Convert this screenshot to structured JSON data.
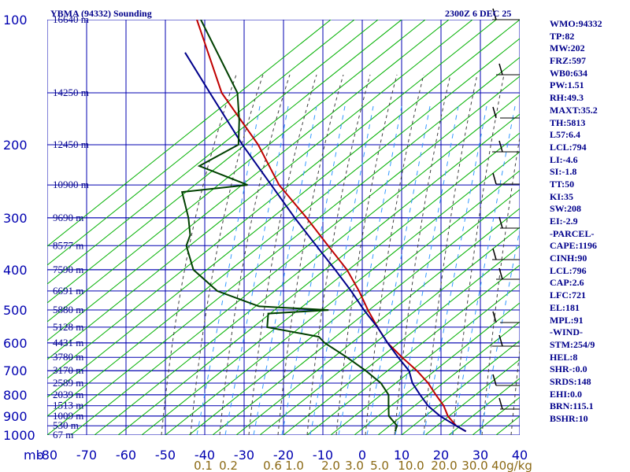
{
  "chart_data": {
    "type": "line",
    "title": "YBMA (94332) Sounding",
    "time": "2300Z  6 DEC 25",
    "pressure_axis": {
      "unit": "mb",
      "ticks": [
        100,
        200,
        300,
        400,
        500,
        600,
        700,
        800,
        900,
        1000
      ],
      "range": [
        100,
        1000
      ],
      "scale": "log"
    },
    "temperature_axis": {
      "ticks": [
        -80,
        -70,
        -60,
        -50,
        -40,
        -30,
        -20,
        -10,
        0,
        10,
        20,
        30,
        40
      ],
      "range": [
        -80,
        40
      ]
    },
    "height_labels": [
      {
        "p": 100,
        "label": "16640 m"
      },
      {
        "p": 150,
        "label": "14250 m"
      },
      {
        "p": 200,
        "label": "12450 m"
      },
      {
        "p": 250,
        "label": "10900 m"
      },
      {
        "p": 300,
        "label": "9690 m"
      },
      {
        "p": 350,
        "label": "8577 m"
      },
      {
        "p": 400,
        "label": "7590 m"
      },
      {
        "p": 450,
        "label": "6691 m"
      },
      {
        "p": 500,
        "label": "5880 m"
      },
      {
        "p": 550,
        "label": "5128 m"
      },
      {
        "p": 600,
        "label": "4431 m"
      },
      {
        "p": 650,
        "label": "3780 m"
      },
      {
        "p": 700,
        "label": "3170 m"
      },
      {
        "p": 750,
        "label": "2589 m"
      },
      {
        "p": 800,
        "label": "2039 m"
      },
      {
        "p": 850,
        "label": "1513 m"
      },
      {
        "p": 900,
        "label": "1009 m"
      },
      {
        "p": 950,
        "label": "530 m"
      },
      {
        "p": 1000,
        "label": "67 m"
      }
    ],
    "mixing_ratio_labels": [
      "0.1",
      "0.2",
      "0.6",
      "1.0",
      "2.0",
      "3.0",
      "5.0",
      "10.0",
      "20.0",
      "30.0",
      "40g/kg"
    ],
    "series": [
      {
        "color": "#c00000",
        "points": [
          {
            "p": 100,
            "t": -80
          },
          {
            "p": 150,
            "t": -67
          },
          {
            "p": 200,
            "t": -53
          },
          {
            "p": 250,
            "t": -44
          },
          {
            "p": 300,
            "t": -34
          },
          {
            "p": 350,
            "t": -26
          },
          {
            "p": 400,
            "t": -19
          },
          {
            "p": 450,
            "t": -14
          },
          {
            "p": 500,
            "t": -10
          },
          {
            "p": 550,
            "t": -6
          },
          {
            "p": 600,
            "t": -2
          },
          {
            "p": 650,
            "t": 3
          },
          {
            "p": 700,
            "t": 8
          },
          {
            "p": 750,
            "t": 12
          },
          {
            "p": 800,
            "t": 15
          },
          {
            "p": 850,
            "t": 18
          },
          {
            "p": 900,
            "t": 20
          },
          {
            "p": 950,
            "t": 23
          },
          {
            "p": 980,
            "t": 26
          }
        ]
      },
      {
        "color": "#00008b",
        "points": [
          {
            "p": 120,
            "t": -80
          },
          {
            "p": 150,
            "t": -70
          },
          {
            "p": 200,
            "t": -57
          },
          {
            "p": 250,
            "t": -46
          },
          {
            "p": 300,
            "t": -37
          },
          {
            "p": 350,
            "t": -29
          },
          {
            "p": 400,
            "t": -22
          },
          {
            "p": 450,
            "t": -16
          },
          {
            "p": 500,
            "t": -11
          },
          {
            "p": 550,
            "t": -6
          },
          {
            "p": 600,
            "t": -2
          },
          {
            "p": 650,
            "t": 2
          },
          {
            "p": 700,
            "t": 6
          },
          {
            "p": 750,
            "t": 8
          },
          {
            "p": 800,
            "t": 11
          },
          {
            "p": 850,
            "t": 14
          },
          {
            "p": 900,
            "t": 18
          },
          {
            "p": 950,
            "t": 23
          },
          {
            "p": 980,
            "t": 26
          }
        ]
      },
      {
        "color": "#004000",
        "points": [
          {
            "p": 100,
            "t": -79
          },
          {
            "p": 150,
            "t": -63
          },
          {
            "p": 175,
            "t": -60
          },
          {
            "p": 200,
            "t": -58
          },
          {
            "p": 225,
            "t": -66
          },
          {
            "p": 250,
            "t": -52
          },
          {
            "p": 260,
            "t": -68
          },
          {
            "p": 300,
            "t": -64
          },
          {
            "p": 330,
            "t": -62
          },
          {
            "p": 350,
            "t": -62
          },
          {
            "p": 400,
            "t": -58
          },
          {
            "p": 450,
            "t": -50
          },
          {
            "p": 490,
            "t": -38
          },
          {
            "p": 500,
            "t": -20
          },
          {
            "p": 510,
            "t": -35
          },
          {
            "p": 550,
            "t": -34
          },
          {
            "p": 580,
            "t": -20
          },
          {
            "p": 600,
            "t": -18
          },
          {
            "p": 650,
            "t": -11
          },
          {
            "p": 700,
            "t": -5
          },
          {
            "p": 750,
            "t": 0
          },
          {
            "p": 800,
            "t": 3
          },
          {
            "p": 850,
            "t": 4
          },
          {
            "p": 900,
            "t": 5
          },
          {
            "p": 950,
            "t": 8
          },
          {
            "p": 980,
            "t": 8
          }
        ]
      }
    ]
  },
  "indices": [
    "WMO:94332",
    "TP:82",
    "MW:202",
    "FRZ:597",
    "WB0:634",
    "PW:1.51",
    "RH:49.3",
    "MAXT:35.2",
    "TH:5813",
    "L57:6.4",
    "LCL:794",
    "LI:-4.6",
    "SI:-1.8",
    "TT:50",
    "KI:35",
    "SW:208",
    "EI:-2.9",
    "-PARCEL-",
    "CAPE:1196",
    "CINH:90",
    "LCL:796",
    "CAP:2.6",
    "LFC:721",
    "EL:181",
    "MPL:91",
    "-WIND-",
    "STM:254/9",
    "HEL:8",
    "SHR-:0.0",
    "SRDS:148",
    "EHI:0.0",
    "BRN:115.1",
    "BSHR:10"
  ],
  "colors": {
    "isobar": "#0000b0",
    "isotherm": "#0000b0",
    "dry_adiabat": "#00b000",
    "moist_adiabat": "#404040",
    "mixing_ratio": "#3399ff",
    "wind_barb": "#000000"
  }
}
